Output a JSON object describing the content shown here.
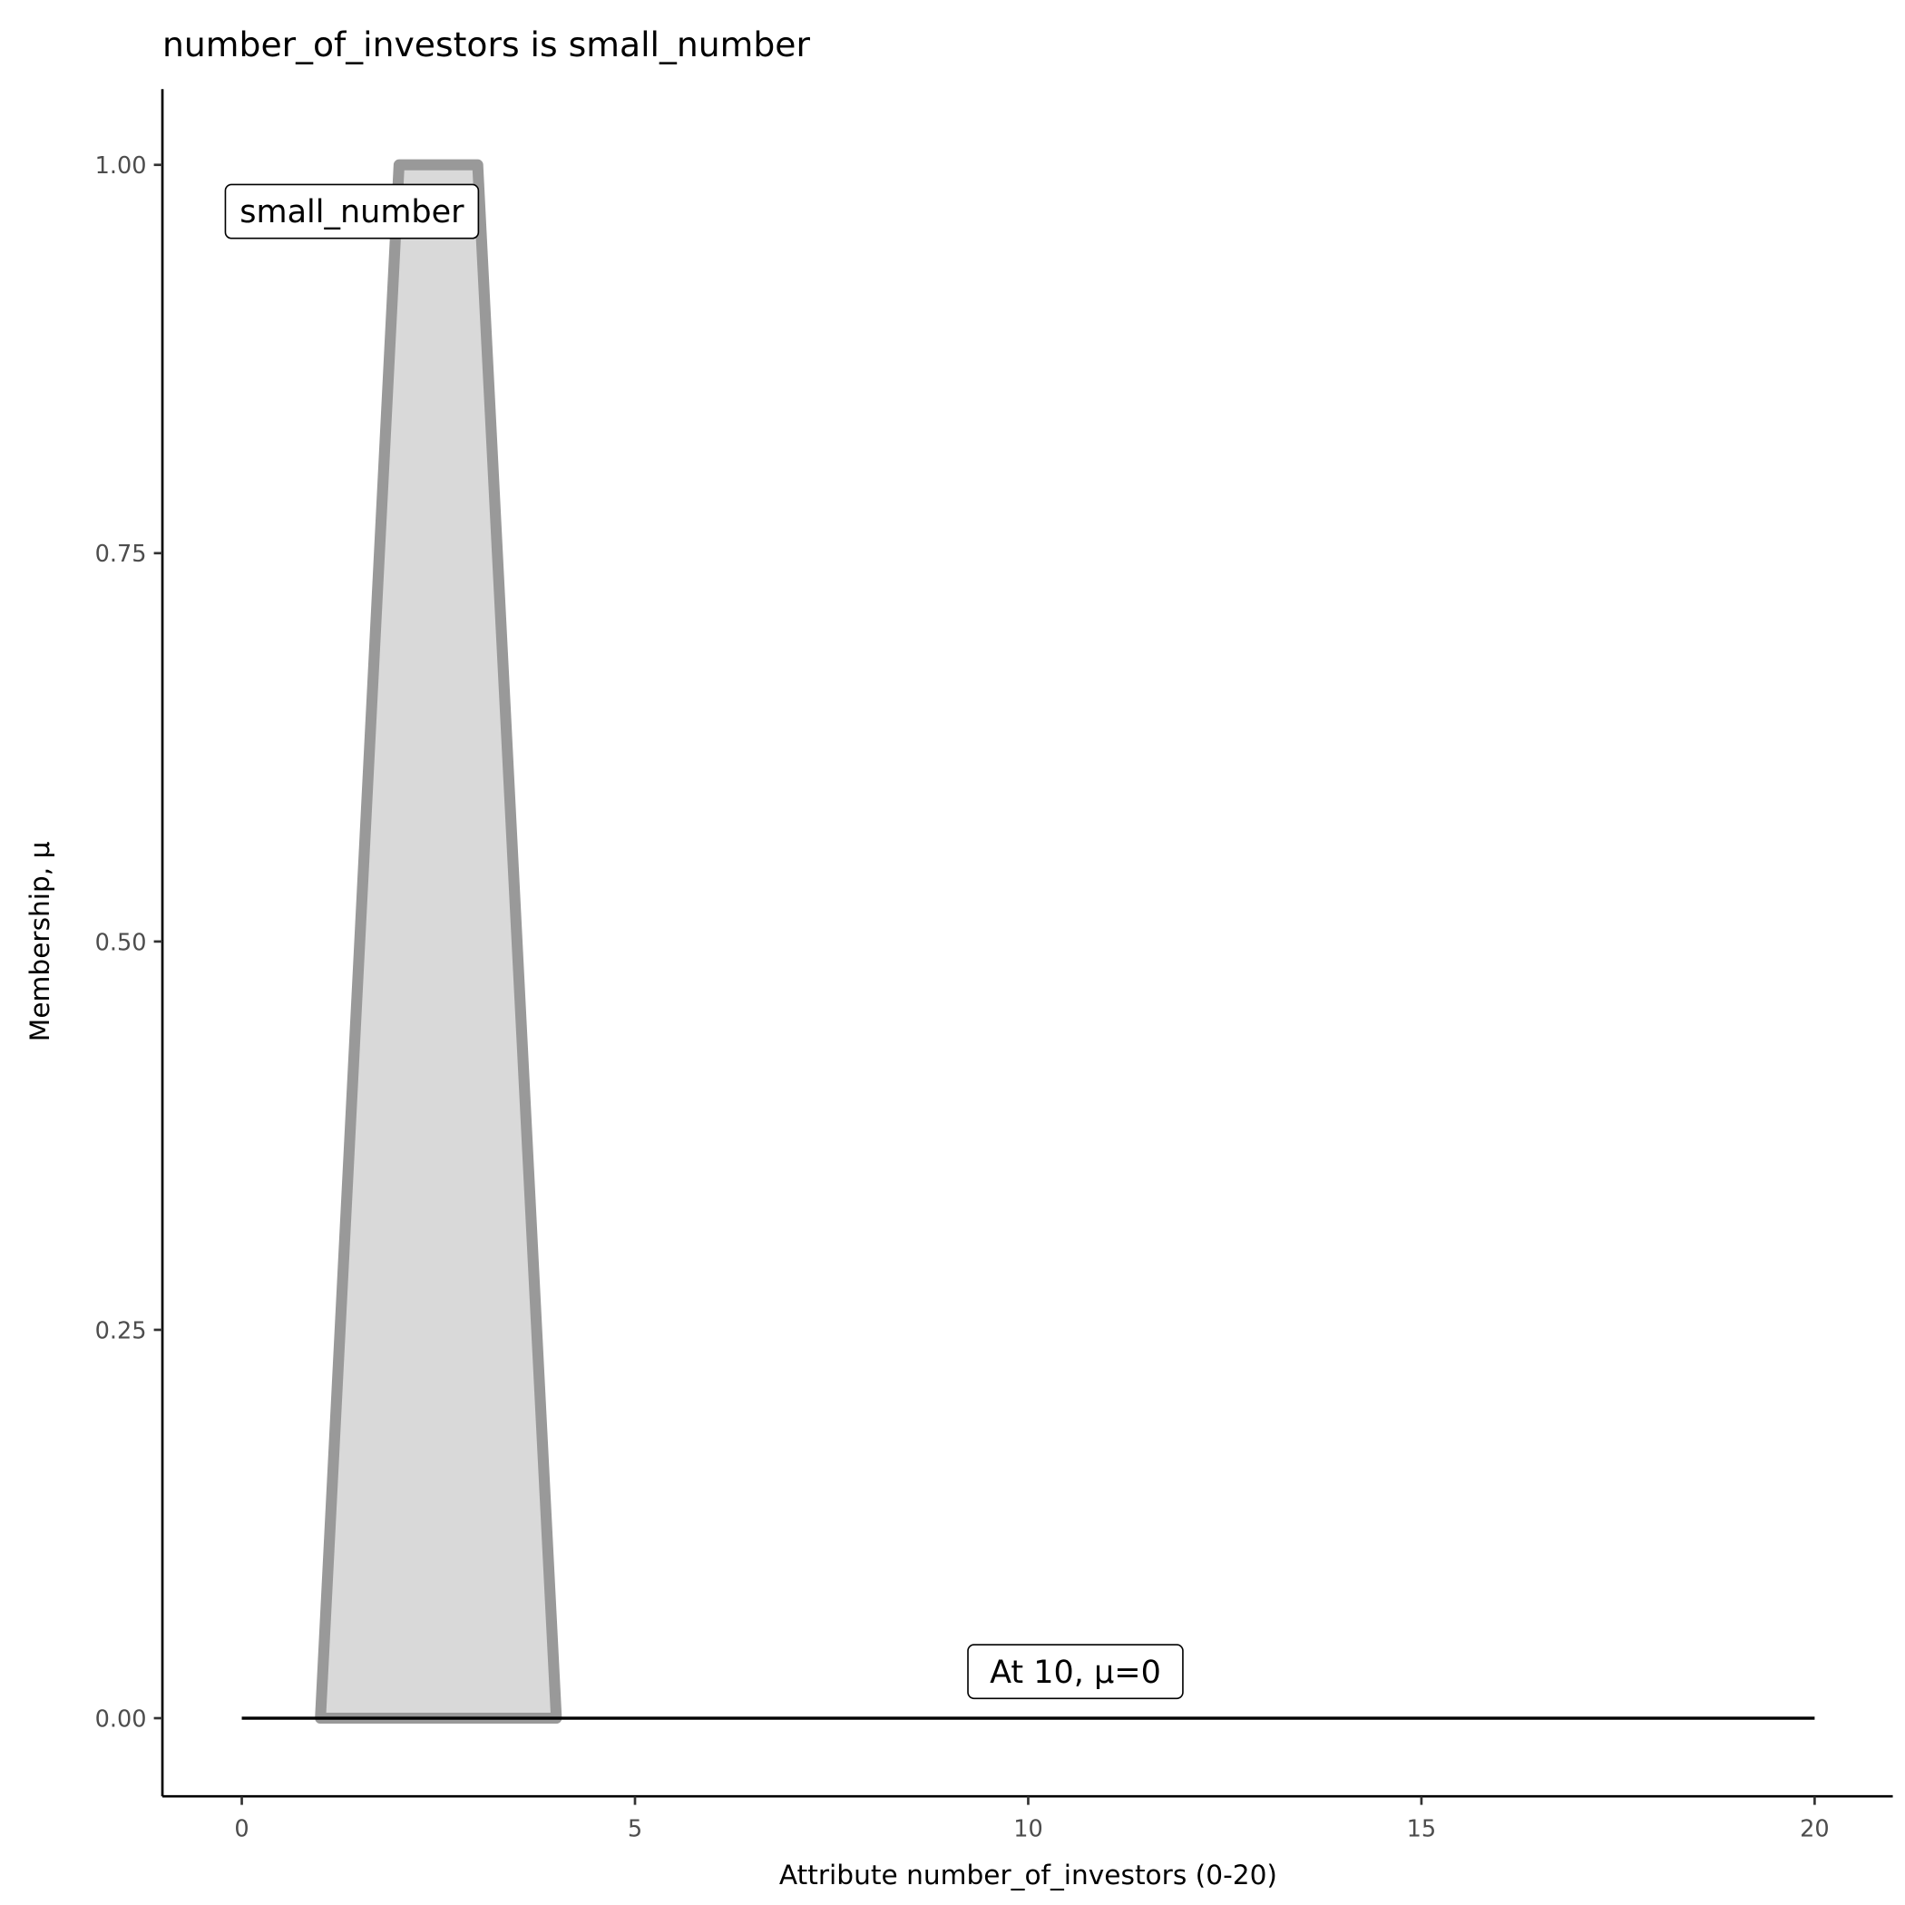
{
  "chart_data": {
    "type": "area",
    "title": "number_of_investors is small_number",
    "xlabel": "Attribute number_of_investors (0-20)",
    "ylabel": "Membership, μ",
    "xlim": [
      -1,
      21
    ],
    "ylim": [
      -0.05,
      1.05
    ],
    "x_ticks": [
      "0",
      "5",
      "10",
      "15",
      "20"
    ],
    "y_ticks": [
      "0.00",
      "0.25",
      "0.50",
      "0.75",
      "1.00"
    ],
    "grid": false,
    "series": [
      {
        "name": "small_number",
        "x": [
          1,
          2,
          3,
          4
        ],
        "y": [
          0,
          1,
          1,
          0
        ],
        "fill": "#d9d9d9",
        "stroke": "#999999"
      }
    ],
    "reference_line": {
      "x": [
        0,
        20
      ],
      "y": [
        0,
        0
      ],
      "color": "#000000"
    },
    "annotations": [
      {
        "text": "small_number",
        "x": 1.4,
        "y": 0.97
      },
      {
        "text": "At 10, μ=0",
        "x": 10.6,
        "y": 0.03
      }
    ]
  }
}
